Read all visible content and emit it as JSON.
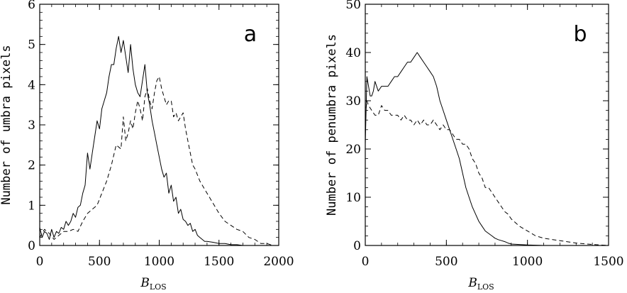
{
  "chart_data": [
    {
      "type": "line",
      "panel_label": "a",
      "xlabel": "B",
      "xlabel_sub": "LOS",
      "ylabel": "Number of umbra pixels",
      "xlim": [
        0,
        2000
      ],
      "ylim": [
        0,
        6
      ],
      "xticks": [
        0,
        500,
        1000,
        1500,
        2000
      ],
      "yticks": [
        0,
        1,
        2,
        3,
        4,
        5,
        6
      ],
      "series": [
        {
          "style": "solid",
          "x": [
            0,
            20,
            40,
            60,
            80,
            100,
            120,
            140,
            160,
            180,
            200,
            220,
            240,
            260,
            280,
            300,
            320,
            340,
            360,
            380,
            400,
            420,
            440,
            460,
            480,
            500,
            520,
            540,
            560,
            580,
            600,
            620,
            640,
            660,
            680,
            700,
            720,
            740,
            760,
            780,
            800,
            820,
            840,
            860,
            880,
            900,
            920,
            940,
            960,
            980,
            1000,
            1020,
            1040,
            1060,
            1080,
            1100,
            1120,
            1140,
            1160,
            1180,
            1200,
            1220,
            1240,
            1260,
            1280,
            1300,
            1320,
            1340,
            1360,
            1380,
            1400,
            1450,
            1500,
            1550,
            1600,
            1650,
            1700,
            1750,
            1800,
            1850,
            1900,
            1950,
            2000
          ],
          "y": [
            0.45,
            0.2,
            0.35,
            0.3,
            0.15,
            0.4,
            0.2,
            0.35,
            0.3,
            0.45,
            0.4,
            0.6,
            0.5,
            0.6,
            0.8,
            0.7,
            0.95,
            1.0,
            1.3,
            1.5,
            2.3,
            1.9,
            2.3,
            2.7,
            3.1,
            2.9,
            3.4,
            3.6,
            3.8,
            4.2,
            4.5,
            4.5,
            4.9,
            5.2,
            4.8,
            5.1,
            4.7,
            4.3,
            5.0,
            4.4,
            4.0,
            3.8,
            3.7,
            4.1,
            4.5,
            3.8,
            3.5,
            3.1,
            2.8,
            2.5,
            2.2,
            1.9,
            1.7,
            1.8,
            1.3,
            1.5,
            1.1,
            1.2,
            0.8,
            0.9,
            0.65,
            0.6,
            0.5,
            0.55,
            0.35,
            0.4,
            0.25,
            0.2,
            0.15,
            0.1,
            0.1,
            0.08,
            0.05,
            0.05,
            0.02,
            0.02,
            0.0,
            0.0,
            0.0,
            0.0,
            0.0,
            0.0,
            0.0
          ]
        },
        {
          "style": "dashed",
          "x": [
            0,
            40,
            80,
            120,
            160,
            200,
            240,
            280,
            320,
            360,
            400,
            440,
            480,
            520,
            560,
            600,
            640,
            680,
            700,
            720,
            740,
            760,
            780,
            800,
            820,
            840,
            860,
            880,
            900,
            920,
            940,
            960,
            980,
            1000,
            1020,
            1040,
            1060,
            1080,
            1100,
            1120,
            1140,
            1160,
            1180,
            1200,
            1220,
            1240,
            1260,
            1280,
            1300,
            1340,
            1380,
            1420,
            1460,
            1500,
            1550,
            1600,
            1650,
            1700,
            1750,
            1800,
            1850,
            1900,
            1950,
            2000
          ],
          "y": [
            0.2,
            0.4,
            0.3,
            0.15,
            0.25,
            0.35,
            0.35,
            0.4,
            0.35,
            0.6,
            0.8,
            0.9,
            1.0,
            1.3,
            1.6,
            2.0,
            2.5,
            2.4,
            3.2,
            2.6,
            2.8,
            3.1,
            2.9,
            3.3,
            3.6,
            3.4,
            3.1,
            3.7,
            3.9,
            3.6,
            3.4,
            3.8,
            4.1,
            4.2,
            3.9,
            3.7,
            3.5,
            3.6,
            3.6,
            3.2,
            3.3,
            3.1,
            3.2,
            3.3,
            2.9,
            2.6,
            2.3,
            2.0,
            1.9,
            1.6,
            1.4,
            1.2,
            1.0,
            0.8,
            0.6,
            0.5,
            0.4,
            0.35,
            0.2,
            0.15,
            0.05,
            0.05,
            0.0,
            0.0
          ]
        }
      ]
    },
    {
      "type": "line",
      "panel_label": "b",
      "xlabel": "B",
      "xlabel_sub": "LOS",
      "ylabel": "Number of penumbra pixels",
      "xlim": [
        0,
        1500
      ],
      "ylim": [
        0,
        50
      ],
      "xticks": [
        0,
        500,
        1000,
        1500
      ],
      "yticks": [
        0,
        10,
        20,
        30,
        40,
        50
      ],
      "series": [
        {
          "style": "solid",
          "x": [
            0,
            10,
            20,
            30,
            40,
            50,
            60,
            80,
            100,
            120,
            140,
            160,
            180,
            200,
            220,
            240,
            260,
            280,
            300,
            320,
            340,
            360,
            380,
            400,
            420,
            440,
            460,
            480,
            500,
            520,
            540,
            560,
            580,
            600,
            620,
            640,
            660,
            680,
            700,
            720,
            740,
            760,
            780,
            800,
            820,
            840,
            860,
            880,
            900,
            950,
            1000,
            1100,
            1200,
            1300,
            1400,
            1500
          ],
          "y": [
            21,
            35,
            33,
            31,
            31,
            32,
            34,
            32,
            33,
            33,
            33,
            34,
            35,
            35,
            36,
            37,
            38,
            38,
            39,
            40,
            39,
            38,
            37,
            36,
            35,
            33,
            30,
            28,
            26,
            24,
            22,
            20,
            18,
            15,
            12,
            10,
            8,
            6.5,
            5,
            4,
            3,
            2.5,
            2,
            1.5,
            1.2,
            1,
            0.8,
            0.5,
            0.3,
            0.2,
            0.1,
            0,
            0,
            0,
            0,
            0
          ]
        },
        {
          "style": "dashed",
          "x": [
            0,
            10,
            20,
            40,
            60,
            80,
            100,
            120,
            140,
            160,
            180,
            200,
            220,
            240,
            260,
            280,
            300,
            320,
            340,
            360,
            380,
            400,
            420,
            440,
            460,
            480,
            500,
            520,
            540,
            560,
            580,
            600,
            620,
            640,
            660,
            680,
            700,
            720,
            740,
            760,
            780,
            800,
            820,
            840,
            860,
            880,
            900,
            950,
            1000,
            1050,
            1100,
            1200,
            1300,
            1400,
            1500
          ],
          "y": [
            27,
            30,
            29,
            28,
            27,
            27,
            29,
            28,
            28,
            27,
            27,
            27,
            26,
            27,
            26,
            26,
            25,
            26,
            25,
            26,
            25,
            25,
            26,
            25,
            24,
            25,
            24,
            24,
            23,
            22,
            22,
            21,
            21,
            20,
            18,
            17,
            15,
            14,
            12,
            12,
            11,
            10,
            9,
            8,
            7,
            6.5,
            5.5,
            4,
            3,
            2,
            1.5,
            1,
            0.5,
            0.2,
            0.0
          ]
        }
      ]
    }
  ]
}
